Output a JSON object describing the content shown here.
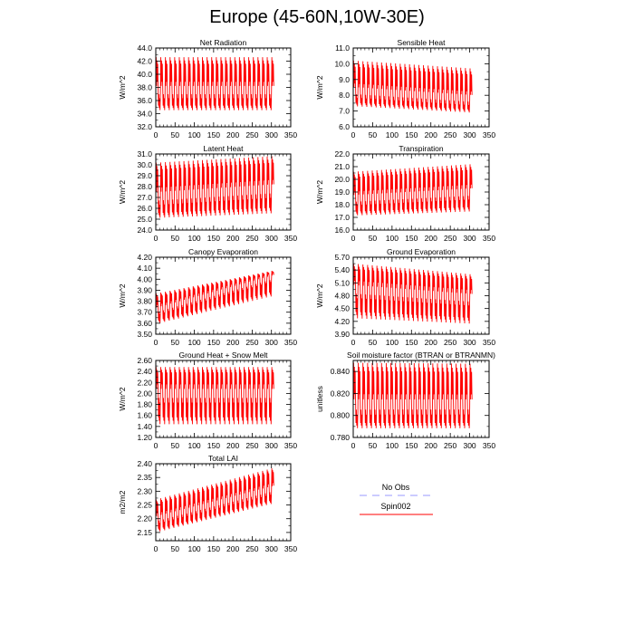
{
  "title": "Europe (45-60N,10W-30E)",
  "legend": {
    "entries": [
      {
        "label": "No Obs",
        "color": "#9999ff",
        "dash": true
      },
      {
        "label": "Spin002",
        "color": "#ff0000",
        "dash": false
      }
    ]
  },
  "chart_data": [
    {
      "type": "line",
      "title": "Net Radiation",
      "ylabel": "W/m^2",
      "xlabel": "",
      "xlim": [
        0,
        350
      ],
      "xticks": [
        0,
        50,
        100,
        150,
        200,
        250,
        300,
        350
      ],
      "ylim": [
        32.0,
        44.0
      ],
      "yticks": [
        32.0,
        34.0,
        36.0,
        38.0,
        40.0,
        42.0,
        44.0
      ],
      "ydec": 1,
      "series": [
        {
          "color": "#ff0000",
          "n_months": 306,
          "cycles": 25.5,
          "max_start": 42.6,
          "max_end": 42.6,
          "min_start": 34.2,
          "min_end": 34.2,
          "mean_start": 37.6,
          "mean_end": 37.6
        }
      ]
    },
    {
      "type": "line",
      "title": "Sensible Heat",
      "ylabel": "W/m^2",
      "xlabel": "",
      "xlim": [
        0,
        350
      ],
      "xticks": [
        0,
        50,
        100,
        150,
        200,
        250,
        300,
        350
      ],
      "ylim": [
        6.0,
        11.0
      ],
      "yticks": [
        6.0,
        7.0,
        8.0,
        9.0,
        10.0,
        11.0
      ],
      "ydec": 1,
      "series": [
        {
          "color": "#ff0000",
          "n_months": 306,
          "cycles": 25.5,
          "max_start": 10.2,
          "max_end": 9.7,
          "min_start": 7.2,
          "min_end": 6.8,
          "mean_start": 8.3,
          "mean_end": 7.8
        }
      ]
    },
    {
      "type": "line",
      "title": "Latent Heat",
      "ylabel": "W/m^2",
      "xlabel": "",
      "xlim": [
        0,
        350
      ],
      "xticks": [
        0,
        50,
        100,
        150,
        200,
        250,
        300,
        350
      ],
      "ylim": [
        24.0,
        31.0
      ],
      "yticks": [
        24.0,
        25.0,
        26.0,
        27.0,
        28.0,
        29.0,
        30.0,
        31.0
      ],
      "ydec": 1,
      "series": [
        {
          "color": "#ff0000",
          "n_months": 306,
          "cycles": 25.5,
          "max_start": 30.2,
          "max_end": 30.8,
          "min_start": 24.9,
          "min_end": 25.3,
          "mean_start": 27.1,
          "mean_end": 27.8
        }
      ]
    },
    {
      "type": "line",
      "title": "Transpiration",
      "ylabel": "W/m^2",
      "xlabel": "",
      "xlim": [
        0,
        350
      ],
      "xticks": [
        0,
        50,
        100,
        150,
        200,
        250,
        300,
        350
      ],
      "ylim": [
        16.0,
        22.0
      ],
      "yticks": [
        16.0,
        17.0,
        18.0,
        19.0,
        20.0,
        21.0,
        22.0
      ],
      "ydec": 1,
      "series": [
        {
          "color": "#ff0000",
          "n_months": 306,
          "cycles": 25.5,
          "max_start": 20.6,
          "max_end": 21.2,
          "min_start": 17.0,
          "min_end": 17.3,
          "mean_start": 18.5,
          "mean_end": 19.0
        }
      ]
    },
    {
      "type": "line",
      "title": "Canopy Evaporation",
      "ylabel": "W/m^2",
      "xlabel": "",
      "xlim": [
        0,
        350
      ],
      "xticks": [
        0,
        50,
        100,
        150,
        200,
        250,
        300,
        350
      ],
      "ylim": [
        3.5,
        4.2
      ],
      "yticks": [
        3.5,
        3.6,
        3.7,
        3.8,
        3.9,
        4.0,
        4.1,
        4.2
      ],
      "ydec": 2,
      "series": [
        {
          "color": "#ff0000",
          "n_months": 306,
          "cycles": 25.5,
          "max_start": 3.87,
          "max_end": 4.08,
          "min_start": 3.58,
          "min_end": 3.83,
          "mean_start": 3.72,
          "mean_end": 4.02
        }
      ]
    },
    {
      "type": "line",
      "title": "Ground Evaporation",
      "ylabel": "W/m^2",
      "xlabel": "",
      "xlim": [
        0,
        350
      ],
      "xticks": [
        0,
        50,
        100,
        150,
        200,
        250,
        300,
        350
      ],
      "ylim": [
        3.9,
        5.7
      ],
      "yticks": [
        3.9,
        4.2,
        4.5,
        4.8,
        5.1,
        5.4,
        5.7
      ],
      "ydec": 2,
      "series": [
        {
          "color": "#ff0000",
          "n_months": 306,
          "cycles": 25.5,
          "max_start": 5.55,
          "max_end": 5.3,
          "min_start": 4.2,
          "min_end": 4.08,
          "mean_start": 4.95,
          "mean_end": 4.75
        }
      ]
    },
    {
      "type": "line",
      "title": "Ground Heat + Snow Melt",
      "ylabel": "W/m^2",
      "xlabel": "",
      "xlim": [
        0,
        350
      ],
      "xticks": [
        0,
        50,
        100,
        150,
        200,
        250,
        300,
        350
      ],
      "ylim": [
        1.2,
        2.6
      ],
      "yticks": [
        1.2,
        1.4,
        1.6,
        1.8,
        2.0,
        2.2,
        2.4,
        2.6
      ],
      "ydec": 2,
      "series": [
        {
          "color": "#ff0000",
          "n_months": 306,
          "cycles": 25.5,
          "max_start": 2.48,
          "max_end": 2.48,
          "min_start": 1.38,
          "min_end": 1.38,
          "mean_start": 2.0,
          "mean_end": 2.0
        }
      ]
    },
    {
      "type": "line",
      "title": "Soil moisture factor (BTRAN or BTRANMN)",
      "ylabel": "unitless",
      "xlabel": "",
      "xlim": [
        0,
        350
      ],
      "xticks": [
        0,
        50,
        100,
        150,
        200,
        250,
        300,
        350
      ],
      "ylim": [
        0.78,
        0.85
      ],
      "yticks": [
        0.78,
        0.8,
        0.82,
        0.84
      ],
      "ydec": 3,
      "series": [
        {
          "color": "#ff0000",
          "n_months": 306,
          "cycles": 25.5,
          "max_start": 0.848,
          "max_end": 0.847,
          "min_start": 0.786,
          "min_end": 0.786,
          "mean_start": 0.81,
          "mean_end": 0.81
        }
      ]
    },
    {
      "type": "line",
      "title": "Total LAI",
      "ylabel": "m2/m2",
      "xlabel": "",
      "xlim": [
        0,
        350
      ],
      "xticks": [
        0,
        50,
        100,
        150,
        200,
        250,
        300,
        350
      ],
      "ylim": [
        2.12,
        2.4
      ],
      "yticks": [
        2.15,
        2.2,
        2.25,
        2.3,
        2.35,
        2.4
      ],
      "ydec": 2,
      "series": [
        {
          "color": "#ff0000",
          "n_months": 306,
          "cycles": 25.5,
          "max_start": 2.27,
          "max_end": 2.385,
          "min_start": 2.145,
          "min_end": 2.25,
          "mean_start": 2.2,
          "mean_end": 2.31
        }
      ]
    }
  ]
}
